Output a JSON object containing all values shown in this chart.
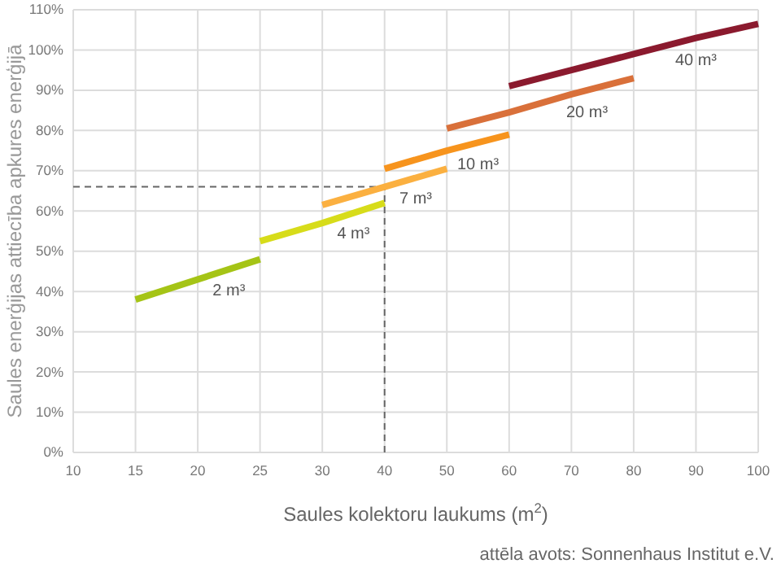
{
  "chart_data": {
    "type": "line",
    "xlabel": "Saules kolektoru laukums (m$^{2}$)",
    "ylabel": "Saules enerģijas attiecība apkures enerģijā",
    "categories": [
      "10",
      "15",
      "20",
      "25",
      "30",
      "40",
      "50",
      "60",
      "70",
      "80",
      "90",
      "100"
    ],
    "series": [
      {
        "name": "2 m³",
        "color": "#a5c416",
        "values": [
          null,
          38,
          43,
          48,
          null,
          null,
          null,
          null,
          null,
          null,
          null,
          null
        ]
      },
      {
        "name": "4 m³",
        "color": "#d7dc1a",
        "values": [
          null,
          null,
          null,
          52.5,
          57,
          62,
          null,
          null,
          null,
          null,
          null,
          null
        ]
      },
      {
        "name": "7 m³",
        "color": "#fbb040",
        "values": [
          null,
          null,
          null,
          null,
          61.5,
          66,
          70.5,
          null,
          null,
          null,
          null,
          null
        ]
      },
      {
        "name": "10 m³",
        "color": "#f7941d",
        "values": [
          null,
          null,
          null,
          null,
          null,
          70.5,
          75,
          79,
          null,
          null,
          null,
          null
        ]
      },
      {
        "name": "20 m³",
        "color": "#d9703a",
        "values": [
          null,
          null,
          null,
          null,
          null,
          null,
          80.5,
          84.5,
          89,
          93,
          null,
          null
        ]
      },
      {
        "name": "40 m³",
        "color": "#8b1a2e",
        "values": [
          null,
          null,
          null,
          null,
          null,
          null,
          null,
          91,
          95,
          99,
          103,
          106.5
        ]
      }
    ],
    "ylim": [
      0,
      110
    ],
    "yticks": [
      {
        "value": 0,
        "label": "0%"
      },
      {
        "value": 10,
        "label": "10%"
      },
      {
        "value": 20,
        "label": "20%"
      },
      {
        "value": 30,
        "label": "30%"
      },
      {
        "value": 40,
        "label": "40%"
      },
      {
        "value": 50,
        "label": "50%"
      },
      {
        "value": 60,
        "label": "60%"
      },
      {
        "value": 70,
        "label": "70%"
      },
      {
        "value": 80,
        "label": "80%"
      },
      {
        "value": 90,
        "label": "90%"
      },
      {
        "value": 100,
        "label": "100%"
      },
      {
        "value": 110,
        "label": "110%"
      }
    ],
    "grid": true,
    "ref_lines": [
      {
        "axis": "y",
        "value": 66,
        "line_style": "dashed",
        "color": "#666666"
      },
      {
        "axis": "x",
        "value": "40",
        "line_style": "dashed",
        "color": "#666666"
      }
    ],
    "annotations": [
      "attēla avots: Sonnenhaus Institut e.V."
    ]
  }
}
